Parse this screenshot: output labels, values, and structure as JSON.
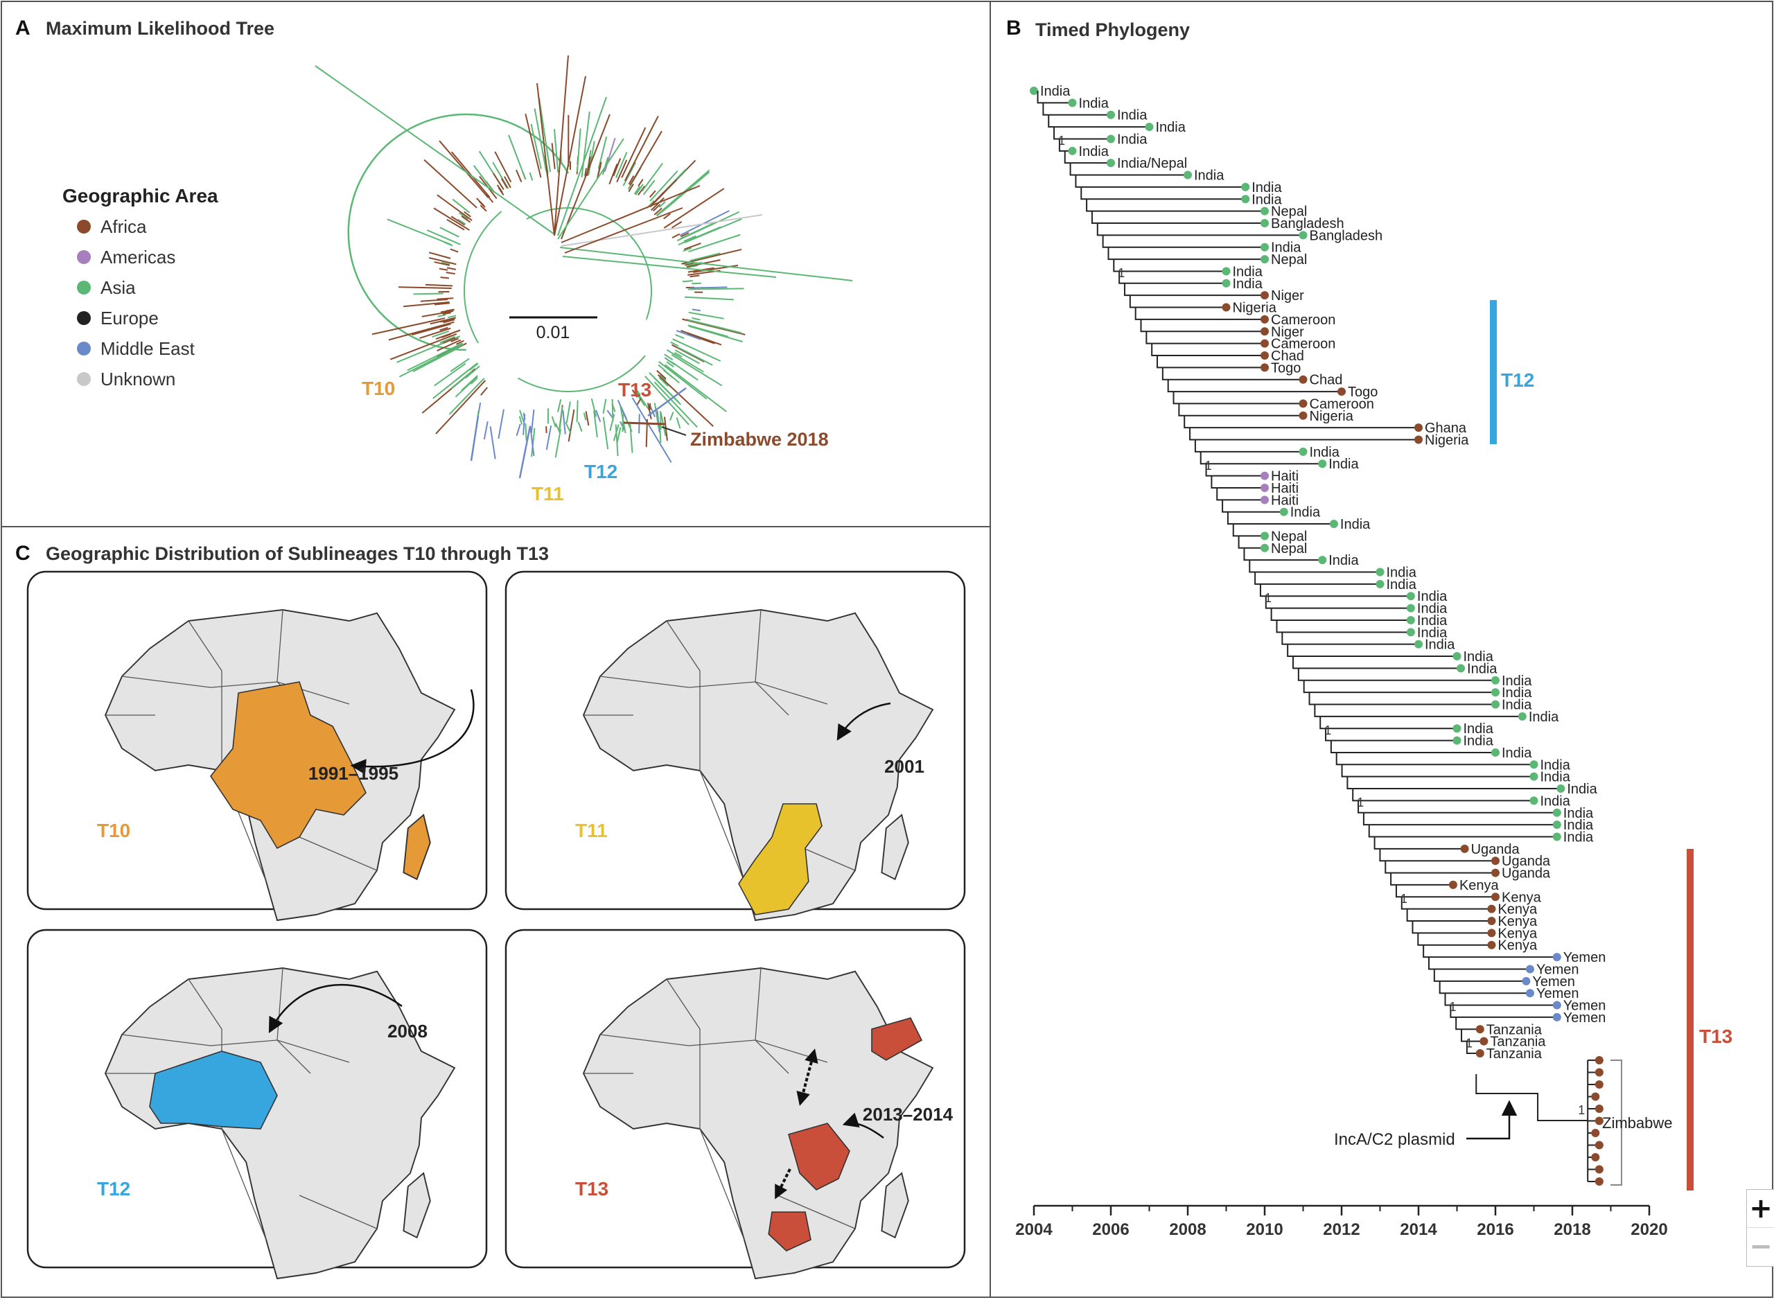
{
  "panels": {
    "a": {
      "letter": "A",
      "title": "Maximum Likelihood Tree"
    },
    "b": {
      "letter": "B",
      "title": "Timed Phylogeny"
    },
    "c": {
      "letter": "C",
      "title": "Geographic Distribution of Sublineages T10 through T13"
    }
  },
  "legend": {
    "title": "Geographic Area",
    "items": [
      {
        "label": "Africa",
        "color": "#8a4a2b"
      },
      {
        "label": "Americas",
        "color": "#a77fbe"
      },
      {
        "label": "Asia",
        "color": "#5bb774"
      },
      {
        "label": "Europe",
        "color": "#222222"
      },
      {
        "label": "Middle East",
        "color": "#6a89c8"
      },
      {
        "label": "Unknown",
        "color": "#c8c8c8"
      }
    ]
  },
  "ml_tree": {
    "scale_label": "0.01",
    "clades": [
      {
        "label": "T10",
        "color": "#e69a37"
      },
      {
        "label": "T13",
        "color": "#c94f3a"
      },
      {
        "label": "T12",
        "color": "#38a6de"
      },
      {
        "label": "T11",
        "color": "#e8c22c"
      }
    ],
    "zimbabwe_label": "Zimbabwe 2018"
  },
  "timed": {
    "axis_ticks": [
      "2004",
      "2006",
      "2008",
      "2010",
      "2012",
      "2014",
      "2016",
      "2018",
      "2020"
    ],
    "axis_min": 2004,
    "axis_max": 2020,
    "support": "1",
    "clade_T12": "T12",
    "clade_T13": "T13",
    "plasmid_label": "IncA/C2 plasmid",
    "zimbabwe_label": "Zimbabwe",
    "leaves": [
      {
        "name": "India",
        "region": "Asia",
        "t": 2004.0
      },
      {
        "name": "India",
        "region": "Asia",
        "t": 2005.0
      },
      {
        "name": "India",
        "region": "Asia",
        "t": 2006.0
      },
      {
        "name": "India",
        "region": "Asia",
        "t": 2007.0
      },
      {
        "name": "India",
        "region": "Asia",
        "t": 2006.0
      },
      {
        "name": "India",
        "region": "Asia",
        "t": 2005.0
      },
      {
        "name": "India/Nepal",
        "region": "Asia",
        "t": 2006.0
      },
      {
        "name": "India",
        "region": "Asia",
        "t": 2008.0
      },
      {
        "name": "India",
        "region": "Asia",
        "t": 2009.5
      },
      {
        "name": "India",
        "region": "Asia",
        "t": 2009.5
      },
      {
        "name": "Nepal",
        "region": "Asia",
        "t": 2010.0
      },
      {
        "name": "Bangladesh",
        "region": "Asia",
        "t": 2010.0
      },
      {
        "name": "Bangladesh",
        "region": "Asia",
        "t": 2011.0
      },
      {
        "name": "India",
        "region": "Asia",
        "t": 2010.0
      },
      {
        "name": "Nepal",
        "region": "Asia",
        "t": 2010.0
      },
      {
        "name": "India",
        "region": "Asia",
        "t": 2009.0
      },
      {
        "name": "India",
        "region": "Asia",
        "t": 2009.0
      },
      {
        "name": "Niger",
        "region": "Africa",
        "t": 2010.0
      },
      {
        "name": "Nigeria",
        "region": "Africa",
        "t": 2009.0
      },
      {
        "name": "Cameroon",
        "region": "Africa",
        "t": 2010.0
      },
      {
        "name": "Niger",
        "region": "Africa",
        "t": 2010.0
      },
      {
        "name": "Cameroon",
        "region": "Africa",
        "t": 2010.0
      },
      {
        "name": "Chad",
        "region": "Africa",
        "t": 2010.0
      },
      {
        "name": "Togo",
        "region": "Africa",
        "t": 2010.0
      },
      {
        "name": "Chad",
        "region": "Africa",
        "t": 2011.0
      },
      {
        "name": "Togo",
        "region": "Africa",
        "t": 2012.0
      },
      {
        "name": "Cameroon",
        "region": "Africa",
        "t": 2011.0
      },
      {
        "name": "Nigeria",
        "region": "Africa",
        "t": 2011.0
      },
      {
        "name": "Ghana",
        "region": "Africa",
        "t": 2014.0
      },
      {
        "name": "Nigeria",
        "region": "Africa",
        "t": 2014.0
      },
      {
        "name": "India",
        "region": "Asia",
        "t": 2011.0
      },
      {
        "name": "India",
        "region": "Asia",
        "t": 2011.5
      },
      {
        "name": "Haiti",
        "region": "Americas",
        "t": 2010.0
      },
      {
        "name": "Haiti",
        "region": "Americas",
        "t": 2010.0
      },
      {
        "name": "Haiti",
        "region": "Americas",
        "t": 2010.0
      },
      {
        "name": "India",
        "region": "Asia",
        "t": 2010.5
      },
      {
        "name": "India",
        "region": "Asia",
        "t": 2011.8
      },
      {
        "name": "Nepal",
        "region": "Asia",
        "t": 2010.0
      },
      {
        "name": "Nepal",
        "region": "Asia",
        "t": 2010.0
      },
      {
        "name": "India",
        "region": "Asia",
        "t": 2011.5
      },
      {
        "name": "India",
        "region": "Asia",
        "t": 2013.0
      },
      {
        "name": "India",
        "region": "Asia",
        "t": 2013.0
      },
      {
        "name": "India",
        "region": "Asia",
        "t": 2013.8
      },
      {
        "name": "India",
        "region": "Asia",
        "t": 2013.8
      },
      {
        "name": "India",
        "region": "Asia",
        "t": 2013.8
      },
      {
        "name": "India",
        "region": "Asia",
        "t": 2013.8
      },
      {
        "name": "India",
        "region": "Asia",
        "t": 2014.0
      },
      {
        "name": "India",
        "region": "Asia",
        "t": 2015.0
      },
      {
        "name": "India",
        "region": "Asia",
        "t": 2015.1
      },
      {
        "name": "India",
        "region": "Asia",
        "t": 2016.0
      },
      {
        "name": "India",
        "region": "Asia",
        "t": 2016.0
      },
      {
        "name": "India",
        "region": "Asia",
        "t": 2016.0
      },
      {
        "name": "India",
        "region": "Asia",
        "t": 2016.7
      },
      {
        "name": "India",
        "region": "Asia",
        "t": 2015.0
      },
      {
        "name": "India",
        "region": "Asia",
        "t": 2015.0
      },
      {
        "name": "India",
        "region": "Asia",
        "t": 2016.0
      },
      {
        "name": "India",
        "region": "Asia",
        "t": 2017.0
      },
      {
        "name": "India",
        "region": "Asia",
        "t": 2017.0
      },
      {
        "name": "India",
        "region": "Asia",
        "t": 2017.7
      },
      {
        "name": "India",
        "region": "Asia",
        "t": 2017.0
      },
      {
        "name": "India",
        "region": "Asia",
        "t": 2017.6
      },
      {
        "name": "India",
        "region": "Asia",
        "t": 2017.6
      },
      {
        "name": "India",
        "region": "Asia",
        "t": 2017.6
      },
      {
        "name": "Uganda",
        "region": "Africa",
        "t": 2015.2
      },
      {
        "name": "Uganda",
        "region": "Africa",
        "t": 2016.0
      },
      {
        "name": "Uganda",
        "region": "Africa",
        "t": 2016.0
      },
      {
        "name": "Kenya",
        "region": "Africa",
        "t": 2014.9
      },
      {
        "name": "Kenya",
        "region": "Africa",
        "t": 2016.0
      },
      {
        "name": "Kenya",
        "region": "Africa",
        "t": 2015.9
      },
      {
        "name": "Kenya",
        "region": "Africa",
        "t": 2015.9
      },
      {
        "name": "Kenya",
        "region": "Africa",
        "t": 2015.9
      },
      {
        "name": "Kenya",
        "region": "Africa",
        "t": 2015.9
      },
      {
        "name": "Yemen",
        "region": "Middle East",
        "t": 2017.6
      },
      {
        "name": "Yemen",
        "region": "Middle East",
        "t": 2016.9
      },
      {
        "name": "Yemen",
        "region": "Middle East",
        "t": 2016.8
      },
      {
        "name": "Yemen",
        "region": "Middle East",
        "t": 2016.9
      },
      {
        "name": "Yemen",
        "region": "Middle East",
        "t": 2017.6
      },
      {
        "name": "Yemen",
        "region": "Middle East",
        "t": 2017.6
      },
      {
        "name": "Tanzania",
        "region": "Africa",
        "t": 2015.6
      },
      {
        "name": "Tanzania",
        "region": "Africa",
        "t": 2015.7
      },
      {
        "name": "Tanzania",
        "region": "Africa",
        "t": 2015.6
      }
    ],
    "zimbabwe_leaves": [
      2018.7,
      2018.7,
      2018.7,
      2018.6,
      2018.7,
      2018.7,
      2018.6,
      2018.7,
      2018.6,
      2018.7,
      2018.7
    ]
  },
  "maps": [
    {
      "label": "T10",
      "color": "#e69a37",
      "annotation": "1991–1995"
    },
    {
      "label": "T11",
      "color": "#e8c22c",
      "annotation": "2001"
    },
    {
      "label": "T12",
      "color": "#38a6de",
      "annotation": "2008"
    },
    {
      "label": "T13",
      "color": "#c94f3a",
      "annotation": "2013–2014"
    }
  ],
  "zoom": {
    "in": "+",
    "out": "−"
  }
}
